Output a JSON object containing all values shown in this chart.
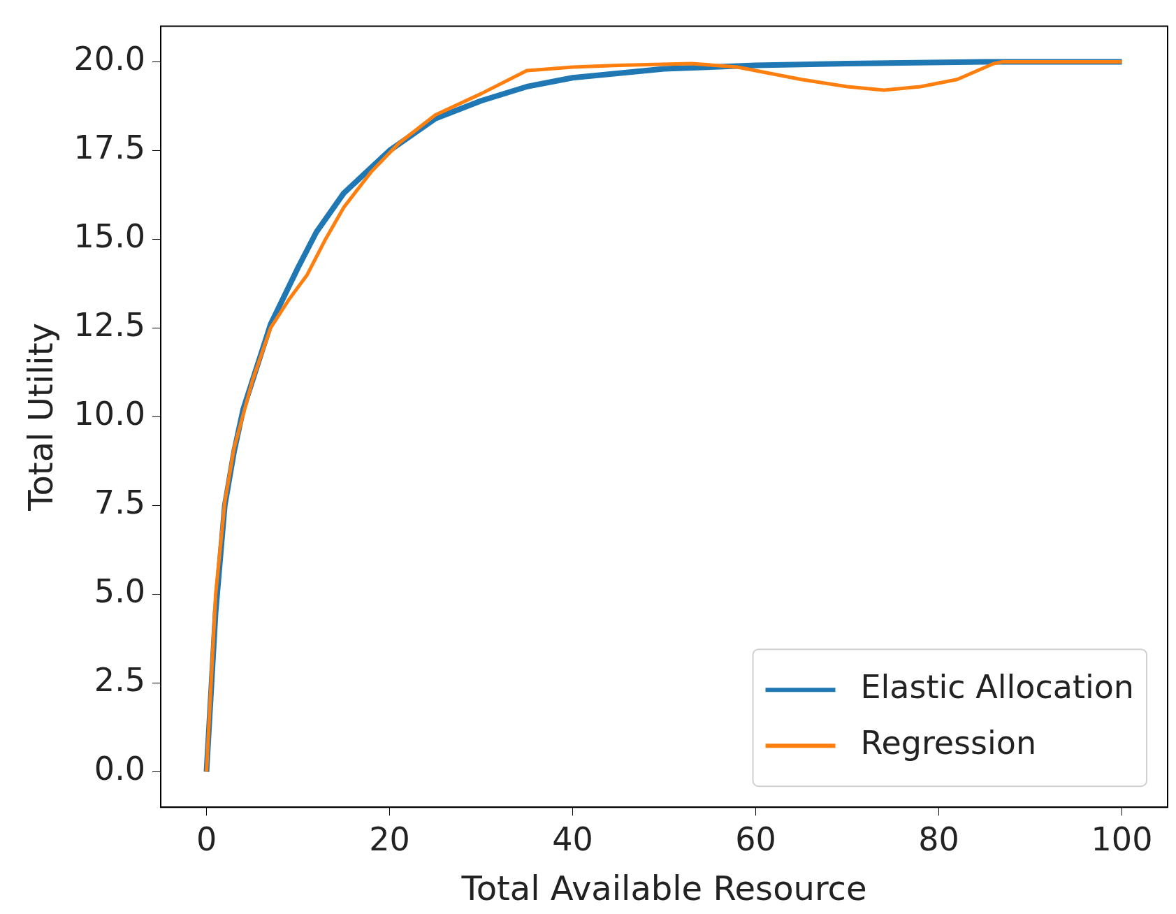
{
  "chart_data": {
    "type": "line",
    "xlabel": "Total Available Resource",
    "ylabel": "Total Utility",
    "xlim": [
      -5,
      105
    ],
    "xticks": [
      0,
      20,
      40,
      60,
      80,
      100
    ],
    "ylim": [
      -1,
      21
    ],
    "yticks": [
      {
        "value": 0,
        "label": "0.0"
      },
      {
        "value": 2.5,
        "label": "2.5"
      },
      {
        "value": 5,
        "label": "5.0"
      },
      {
        "value": 7.5,
        "label": "7.5"
      },
      {
        "value": 10,
        "label": "10.0"
      },
      {
        "value": 12.5,
        "label": "12.5"
      },
      {
        "value": 15,
        "label": "15.0"
      },
      {
        "value": 17.5,
        "label": "17.5"
      },
      {
        "value": 20,
        "label": "20.0"
      }
    ],
    "grid": false,
    "legend": "bottom right",
    "marker": "none",
    "line_style": "solid",
    "series": [
      {
        "name": "Elastic Allocation",
        "color": "#1f77b4",
        "x": [
          0,
          1,
          2,
          3,
          4,
          5,
          7,
          10,
          12,
          15,
          20,
          25,
          30,
          35,
          40,
          50,
          60,
          70,
          85,
          100
        ],
        "values": [
          0,
          4.5,
          7.5,
          9.0,
          10.2,
          11.0,
          12.6,
          14.2,
          15.2,
          16.3,
          17.5,
          18.4,
          18.9,
          19.3,
          19.55,
          19.8,
          19.9,
          19.95,
          20,
          20
        ]
      },
      {
        "name": "Regression",
        "color": "#ff7f0e",
        "x": [
          0,
          1,
          2,
          3,
          5,
          7,
          9,
          11,
          13,
          15,
          18,
          21,
          25,
          30,
          35,
          40,
          45,
          53,
          58,
          65,
          70,
          74,
          78,
          82,
          86,
          87,
          100
        ],
        "values": [
          0,
          5,
          7.6,
          9.1,
          11.0,
          12.5,
          13.3,
          14.0,
          15.0,
          15.9,
          16.9,
          17.7,
          18.5,
          19.1,
          19.75,
          19.85,
          19.9,
          19.95,
          19.85,
          19.5,
          19.3,
          19.2,
          19.3,
          19.5,
          19.95,
          20,
          20
        ]
      }
    ]
  }
}
